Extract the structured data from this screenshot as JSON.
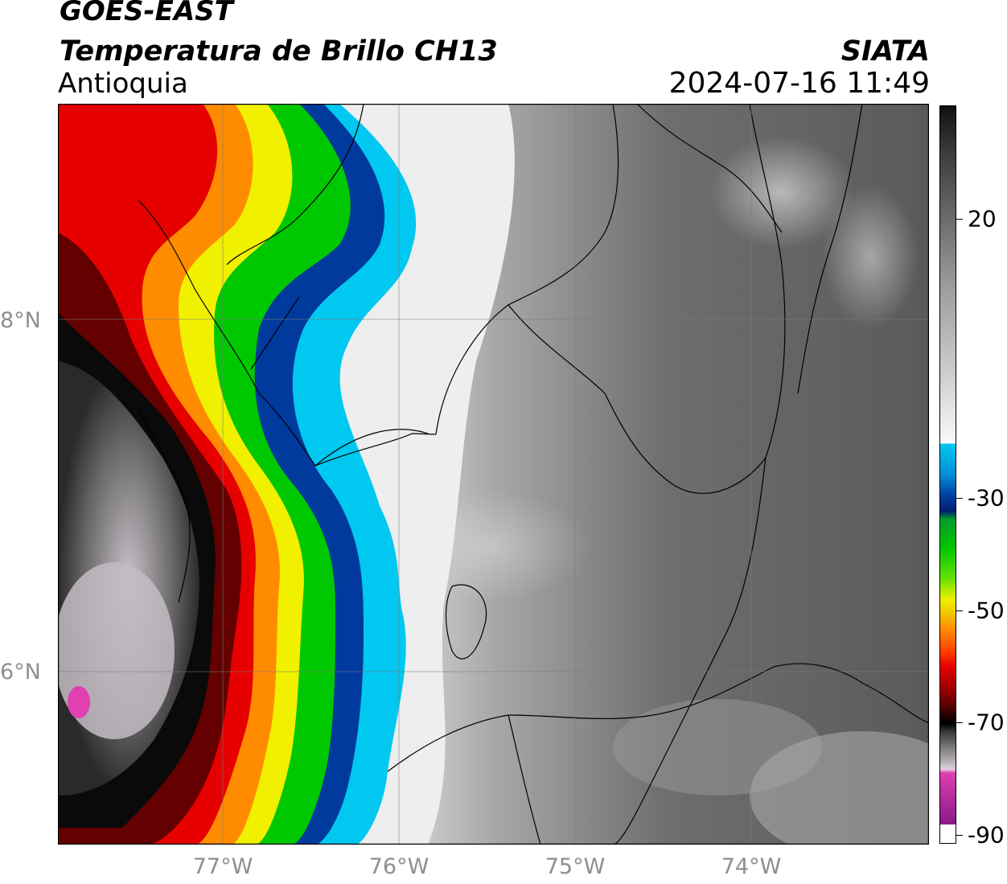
{
  "header": {
    "satellite": "GOES-EAST",
    "product": "Temperatura de Brillo CH13",
    "region": "Antioquia",
    "organization": "SIATA",
    "datetime": "2024-07-16 11:49"
  },
  "map": {
    "latitude_labels": [
      "8°N",
      "6°N"
    ],
    "longitude_labels": [
      "77°W",
      "76°W",
      "75°W",
      "74°W"
    ]
  },
  "colorbar": {
    "units_hint": "",
    "tick_labels": [
      "20",
      "-30",
      "-50",
      "-70",
      "-90"
    ],
    "colors": {
      "warm_top": "#1c1c1c",
      "gray_mid": "#888888",
      "white": "#f5f5f5",
      "cyan": "#00c8f0",
      "blue": "#003a9c",
      "green": "#00c800",
      "yellow": "#f0f000",
      "orange": "#ff8c00",
      "red": "#e60000",
      "dark_red": "#640000",
      "black": "#000000",
      "magenta": "#e040b0",
      "purple": "#8a1a8a"
    }
  }
}
